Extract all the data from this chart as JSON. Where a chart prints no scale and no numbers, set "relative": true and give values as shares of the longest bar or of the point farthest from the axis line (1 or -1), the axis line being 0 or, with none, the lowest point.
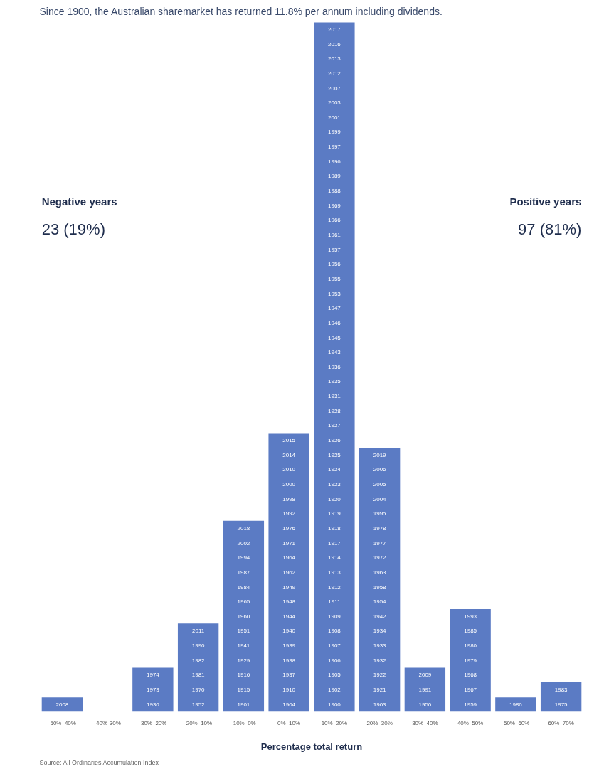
{
  "chart_data": {
    "type": "bar",
    "title": "Since 1900, the Australian sharemarket has returned 11.8% per annum including dividends.",
    "xlabel": "Percentage total return",
    "categories": [
      "-50%–40%",
      "-40%-30%",
      "-30%–20%",
      "-20%–10%",
      "-10%–0%",
      "0%–10%",
      "10%–20%",
      "20%–30%",
      "30%–40%",
      "40%–50%",
      "-50%–60%",
      "60%–70%"
    ],
    "values": [
      0.021,
      0,
      0.064,
      0.128,
      0.277,
      0.404,
      1,
      0.383,
      0.064,
      0.149,
      0.021,
      0.043
    ],
    "color": "#5b7bc4",
    "relative": true,
    "grid": false,
    "annotations": [
      "Negative years",
      "23 (19%)",
      "Positive years",
      "97 (81%)",
      "Source: All Ordinaries Accumulation Index",
      "2008",
      "1930",
      "1973",
      "1974",
      "1952",
      "1970",
      "1981",
      "1982",
      "1990",
      "2011",
      "1901",
      "1915",
      "1916",
      "1929",
      "1941",
      "1951",
      "1960",
      "1965",
      "1984",
      "1987",
      "1994",
      "2002",
      "2018",
      "1904",
      "1910",
      "1937",
      "1938",
      "1939",
      "1940",
      "1944",
      "1948",
      "1949",
      "1962",
      "1964",
      "1971",
      "1976",
      "1992",
      "1998",
      "2000",
      "2010",
      "2014",
      "2015",
      "1900",
      "1902",
      "1905",
      "1906",
      "1907",
      "1908",
      "1909",
      "1911",
      "1912",
      "1913",
      "1914",
      "1917",
      "1918",
      "1919",
      "1920",
      "1923",
      "1924",
      "1925",
      "1926",
      "1927",
      "1928",
      "1931",
      "1935",
      "1936",
      "1943",
      "1945",
      "1946",
      "1947",
      "1953",
      "1955",
      "1956",
      "1957",
      "1961",
      "1966",
      "1969",
      "1988",
      "1989",
      "1996",
      "1997",
      "1999",
      "2001",
      "2003",
      "2007",
      "2012",
      "2013",
      "2016",
      "2017",
      "1903",
      "1921",
      "1922",
      "1932",
      "1933",
      "1934",
      "1942",
      "1954",
      "1958",
      "1963",
      "1972",
      "1977",
      "1978",
      "1995",
      "2004",
      "2005",
      "2006",
      "2019",
      "1950",
      "1991",
      "2009",
      "1959",
      "1967",
      "1968",
      "1979",
      "1980",
      "1985",
      "1993",
      "1986",
      "1975",
      "1983"
    ]
  }
}
